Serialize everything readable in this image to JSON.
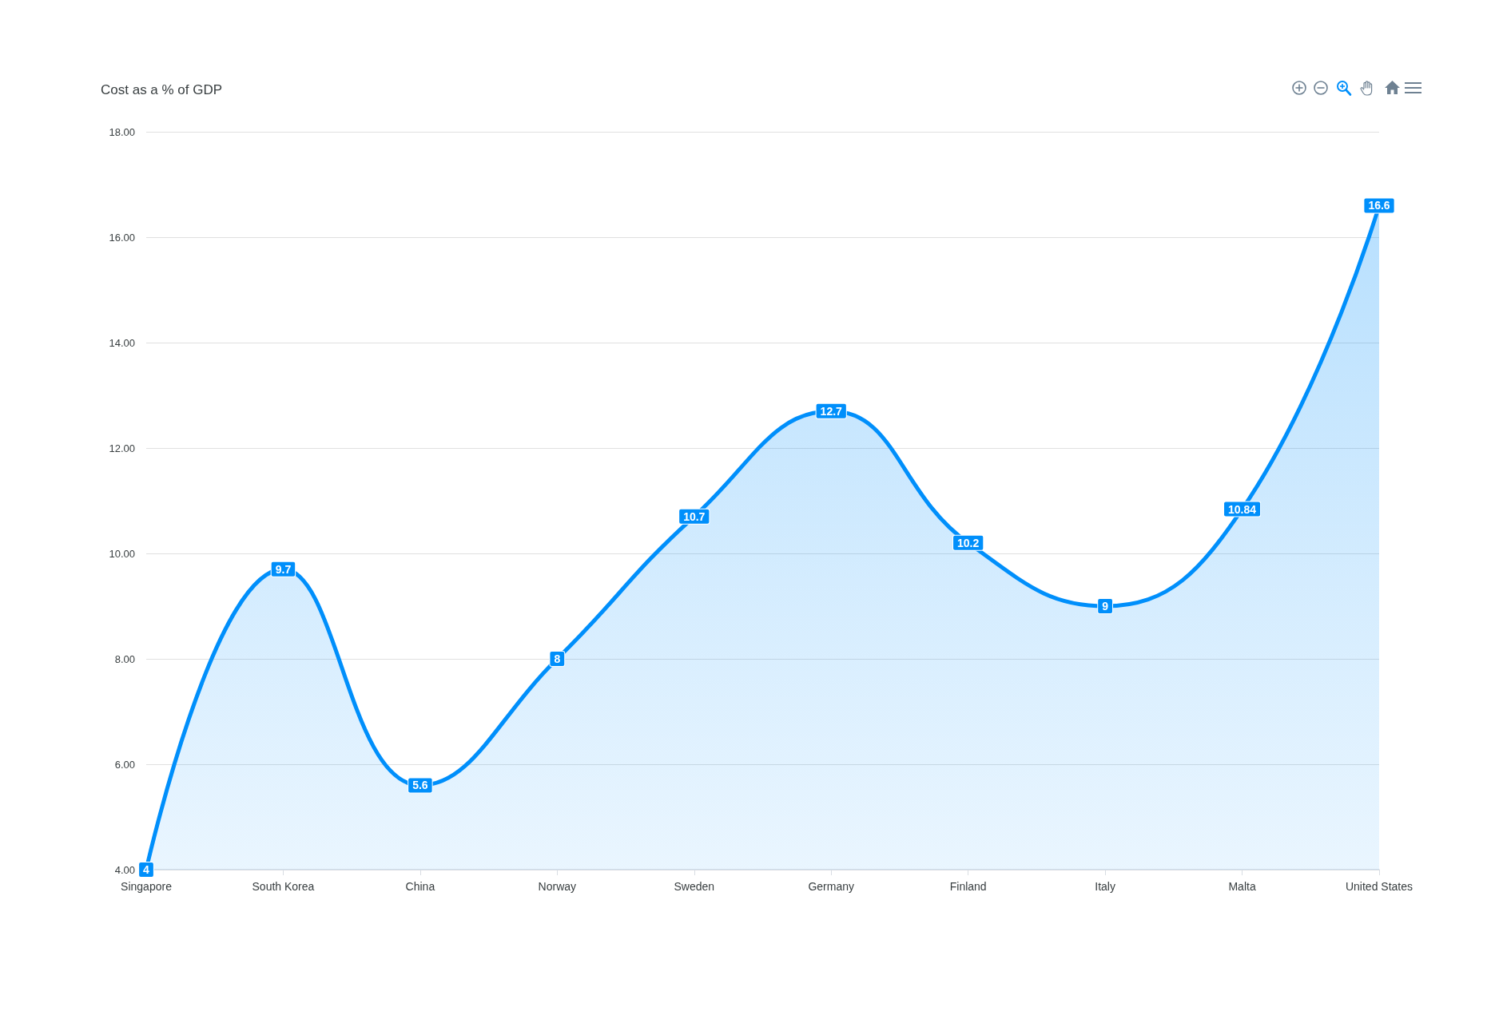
{
  "chart_data": {
    "type": "area",
    "title": "Cost as a % of GDP",
    "categories": [
      "Singapore",
      "South Korea",
      "China",
      "Norway",
      "Sweden",
      "Germany",
      "Finland",
      "Italy",
      "Malta",
      "United States"
    ],
    "values": [
      4,
      9.7,
      5.6,
      8,
      10.7,
      12.7,
      10.2,
      9,
      10.84,
      16.6
    ],
    "color": "#008ffb",
    "ylim": [
      4,
      18
    ],
    "yticks": [
      {
        "value": 4,
        "label": "4.00"
      },
      {
        "value": 6,
        "label": "6.00"
      },
      {
        "value": 8,
        "label": "8.00"
      },
      {
        "value": 10,
        "label": "10.00"
      },
      {
        "value": 12,
        "label": "12.00"
      },
      {
        "value": 14,
        "label": "14.00"
      },
      {
        "value": 16,
        "label": "16.00"
      },
      {
        "value": 18,
        "label": "18.00"
      }
    ],
    "grid": "y",
    "data_labels": true,
    "line_style": "solid"
  }
}
